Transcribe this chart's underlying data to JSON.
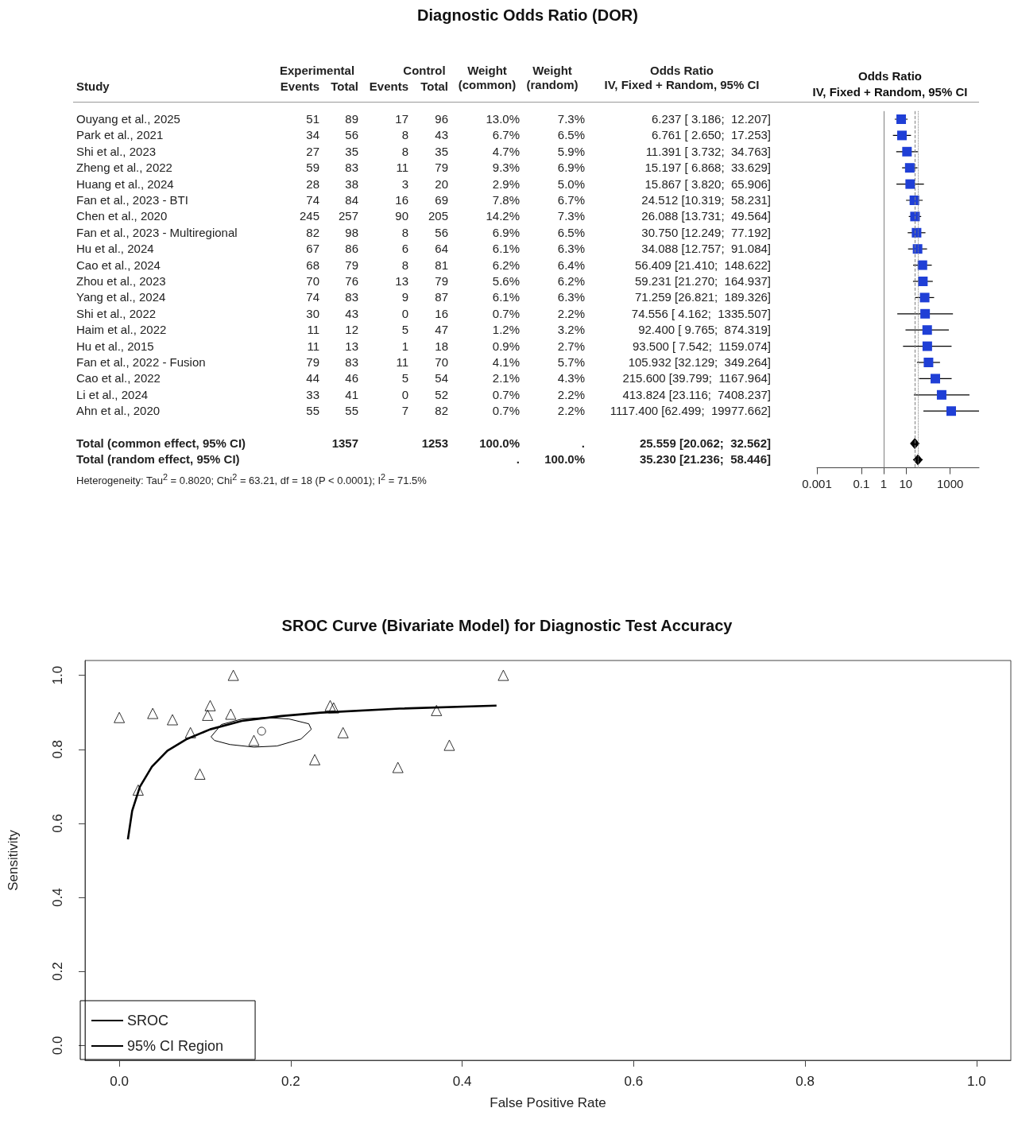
{
  "chart_data": [
    {
      "type": "other",
      "title": "Diagnostic Odds Ratio (DOR)",
      "categories": [
        "Study",
        "Events",
        "Total",
        "Events",
        "Total",
        "Weight\n(common)",
        "Weight\n(random)",
        "Odds Ratio\nIV, Fixed + Random, 95% CI"
      ],
      "y_categories": [
        "Ouyang et al., 2025",
        "Park et al., 2021",
        "Shi et al., 2023",
        "Zheng et al., 2022",
        "Huang et al., 2024",
        "Fan et al., 2023 - BTI",
        "Chen et al., 2020",
        "Fan et al., 2023 - Multiregional",
        "Hu et al., 2024",
        "Cao et al., 2024",
        "Zhou et al., 2023",
        "Yang et al., 2024",
        "Shi et al., 2022",
        "Haim et al., 2022",
        "Hu et al., 2015",
        "Fan et al., 2022 - Fusion",
        "Cao et al., 2022",
        "Li et al., 2024",
        "Ahn et al., 2020",
        "Total (common effect, 95% CI)",
        "Total (random effect, 95% CI)"
      ],
      "cell_labels": [
        [
          "51",
          "89",
          "17",
          "96",
          "13.0%",
          "7.3%",
          "6.237 [ 3.186;  12.207]"
        ],
        [
          "34",
          "56",
          "8",
          "43",
          "6.7%",
          "6.5%",
          "6.761 [ 2.650;  17.253]"
        ],
        [
          "27",
          "35",
          "8",
          "35",
          "4.7%",
          "5.9%",
          "11.391 [ 3.732;  34.763]"
        ],
        [
          "59",
          "83",
          "11",
          "79",
          "9.3%",
          "6.9%",
          "15.197 [ 6.868;  33.629]"
        ],
        [
          "28",
          "38",
          "3",
          "20",
          "2.9%",
          "5.0%",
          "15.867 [ 3.820;  65.906]"
        ],
        [
          "74",
          "84",
          "16",
          "69",
          "7.8%",
          "6.7%",
          "24.512 [10.319;  58.231]"
        ],
        [
          "245",
          "257",
          "90",
          "205",
          "14.2%",
          "7.3%",
          "26.088 [13.731;  49.564]"
        ],
        [
          "82",
          "98",
          "8",
          "56",
          "6.9%",
          "6.5%",
          "30.750 [12.249;  77.192]"
        ],
        [
          "67",
          "86",
          "6",
          "64",
          "6.1%",
          "6.3%",
          "34.088 [12.757;  91.084]"
        ],
        [
          "68",
          "79",
          "8",
          "81",
          "6.2%",
          "6.4%",
          "56.409 [21.410;  148.622]"
        ],
        [
          "70",
          "76",
          "13",
          "79",
          "5.6%",
          "6.2%",
          "59.231 [21.270;  164.937]"
        ],
        [
          "74",
          "83",
          "9",
          "87",
          "6.1%",
          "6.3%",
          "71.259 [26.821;  189.326]"
        ],
        [
          "30",
          "43",
          "0",
          "16",
          "0.7%",
          "2.2%",
          "74.556 [ 4.162;  1335.507]"
        ],
        [
          "11",
          "12",
          "5",
          "47",
          "1.2%",
          "3.2%",
          "92.400 [ 9.765;  874.319]"
        ],
        [
          "11",
          "13",
          "1",
          "18",
          "0.9%",
          "2.7%",
          "93.500 [ 7.542;  1159.074]"
        ],
        [
          "79",
          "83",
          "11",
          "70",
          "4.1%",
          "5.7%",
          "105.932 [32.129;  349.264]"
        ],
        [
          "44",
          "46",
          "5",
          "54",
          "2.1%",
          "4.3%",
          "215.600 [39.799;  1167.964]"
        ],
        [
          "33",
          "41",
          "0",
          "52",
          "0.7%",
          "2.2%",
          "413.824 [23.116;  7408.237]"
        ],
        [
          "55",
          "55",
          "7",
          "82",
          "0.7%",
          "2.2%",
          "1117.400 [62.499;  19977.662]"
        ],
        [
          null,
          "1357",
          null,
          "1253",
          "100.0%",
          ".",
          "25.559 [20.062;  32.562]"
        ],
        [
          null,
          null,
          null,
          null,
          ".",
          "100.0%",
          "35.230 [21.236;  58.446]"
        ]
      ],
      "annotations": [
        "Experimental",
        "Control",
        "Heterogeneity: Tau$^{2}$ = 0.8020; Chi$^{2}$ = 63.21, df = 18 (P < 0.0001); I$^{2}$ = 71.5%"
      ]
    },
    {
      "type": "scatter",
      "orientation": "horizontal",
      "title": "Odds Ratio\nIV, Fixed + Random, 95% CI",
      "log": "x",
      "categories": [
        null,
        null,
        null,
        null,
        null,
        null,
        null,
        null,
        null,
        null,
        null,
        null,
        null,
        null,
        null,
        null,
        null,
        null,
        null,
        null,
        null,
        null
      ],
      "xlim": [
        0.001,
        20000
      ],
      "xticks": [
        0.001,
        0.1,
        1,
        10,
        1000
      ],
      "series": [
        {
          "color": "#1f3fd6",
          "marker": "square",
          "values": [
            6.237,
            6.761,
            11.391,
            15.197,
            15.867,
            24.512,
            26.088,
            30.75,
            34.088,
            56.409,
            59.231,
            71.259,
            74.556,
            92.4,
            93.5,
            105.932,
            215.6,
            413.824,
            1117.4,
            null,
            null,
            null
          ],
          "errors": [
            [
              3.186,
              12.207
            ],
            [
              2.65,
              17.253
            ],
            [
              3.732,
              34.763
            ],
            [
              6.868,
              33.629
            ],
            [
              3.82,
              65.906
            ],
            [
              10.319,
              58.231
            ],
            [
              13.731,
              49.564
            ],
            [
              12.249,
              77.192
            ],
            [
              12.757,
              91.084
            ],
            [
              21.41,
              148.622
            ],
            [
              21.27,
              164.937
            ],
            [
              26.821,
              189.326
            ],
            [
              4.162,
              1335.507
            ],
            [
              9.765,
              874.319
            ],
            [
              7.542,
              1159.074
            ],
            [
              32.129,
              349.264
            ],
            [
              39.799,
              1167.964
            ],
            [
              23.116,
              7408.237
            ],
            [
              62.499,
              19977.662
            ],
            null,
            null,
            null
          ]
        },
        {
          "color": "#000000",
          "marker": "diamond",
          "values": [
            null,
            null,
            null,
            null,
            null,
            null,
            null,
            null,
            null,
            null,
            null,
            null,
            null,
            null,
            null,
            null,
            null,
            null,
            null,
            null,
            25.559,
            35.23
          ],
          "errors": [
            null,
            null,
            null,
            null,
            null,
            null,
            null,
            null,
            null,
            null,
            null,
            null,
            null,
            null,
            null,
            null,
            null,
            null,
            null,
            null,
            [
              20.062,
              32.562
            ],
            [
              21.236,
              58.446
            ]
          ]
        }
      ],
      "ref_lines": [
        {
          "axis": "x",
          "value": 1,
          "color": "#808080",
          "line_style": "solid"
        },
        {
          "axis": "x",
          "value": 25.559,
          "color": "#808080",
          "line_style": "dashed"
        },
        {
          "axis": "x",
          "value": 35.23,
          "color": "#808080",
          "line_style": "dotted"
        }
      ]
    },
    {
      "type": "scatter",
      "title": "SROC Curve (Bivariate Model) for Diagnostic Test Accuracy",
      "xlabel": "False Positive Rate",
      "ylabel": "Sensitivity",
      "xlim": [
        -0.04,
        1.04
      ],
      "ylim": [
        -0.04,
        1.04
      ],
      "xticks": [
        {
          "value": 0,
          "label": "0.0"
        },
        {
          "value": 0.2,
          "label": "0.2"
        },
        {
          "value": 0.4,
          "label": "0.4"
        },
        {
          "value": 0.6,
          "label": "0.6"
        },
        {
          "value": 0.8,
          "label": "0.8"
        },
        {
          "value": 1,
          "label": "1.0"
        }
      ],
      "yticks": [
        {
          "value": 0,
          "label": "0.0"
        },
        {
          "value": 0.2,
          "label": "0.2"
        },
        {
          "value": 0.4,
          "label": "0.4"
        },
        {
          "value": 0.6,
          "label": "0.6"
        },
        {
          "value": 0.8,
          "label": "0.8"
        },
        {
          "value": 1,
          "label": "1.0"
        }
      ],
      "legend": "bottom left",
      "grid": false,
      "series": [
        {
          "name": "SROC",
          "type": "line",
          "color": "#000000",
          "marker": "none",
          "x": [
            0.01,
            0.015,
            0.024,
            0.038,
            0.056,
            0.079,
            0.106,
            0.143,
            0.189,
            0.235,
            0.327,
            0.44
          ],
          "values": [
            0.557,
            0.634,
            0.699,
            0.753,
            0.796,
            0.828,
            0.854,
            0.877,
            0.89,
            0.899,
            0.91,
            0.918
          ]
        },
        {
          "name": "95% CI Region",
          "type": "line",
          "color": "#000000",
          "marker": "none",
          "x": [
            0.107,
            0.119,
            0.143,
            0.17,
            0.198,
            0.221,
            0.224
          ],
          "values": [
            0.834,
            0.867,
            0.882,
            0.886,
            0.882,
            0.869,
            0.854
          ]
        },
        {
          "type": "line",
          "color": "#000000",
          "marker": "none",
          "x": [
            0.107,
            0.111,
            0.129,
            0.157,
            0.184,
            0.212,
            0.224
          ],
          "values": [
            0.834,
            0.824,
            0.813,
            0.806,
            0.809,
            0.828,
            0.854
          ]
        },
        {
          "type": "scatter",
          "color": "#000000",
          "marker": "triangle",
          "x": [
            0,
            0.039,
            0.062,
            0.083,
            0.094,
            0.103,
            0.106,
            0.13,
            0.133,
            0.157,
            0.022,
            0.228,
            0.246,
            0.25,
            0.261,
            0.325,
            0.37,
            0.385,
            0.448
          ],
          "values": [
            0.886,
            0.897,
            0.88,
            0.845,
            0.733,
            0.892,
            0.918,
            0.895,
            1.0,
            0.824,
            0.69,
            0.772,
            0.918,
            0.912,
            0.845,
            0.751,
            0.905,
            0.811,
            1.0
          ]
        },
        {
          "type": "scatter",
          "color": "#000000",
          "marker": "circle",
          "x": [
            0.166
          ],
          "values": [
            0.849
          ]
        }
      ]
    }
  ]
}
